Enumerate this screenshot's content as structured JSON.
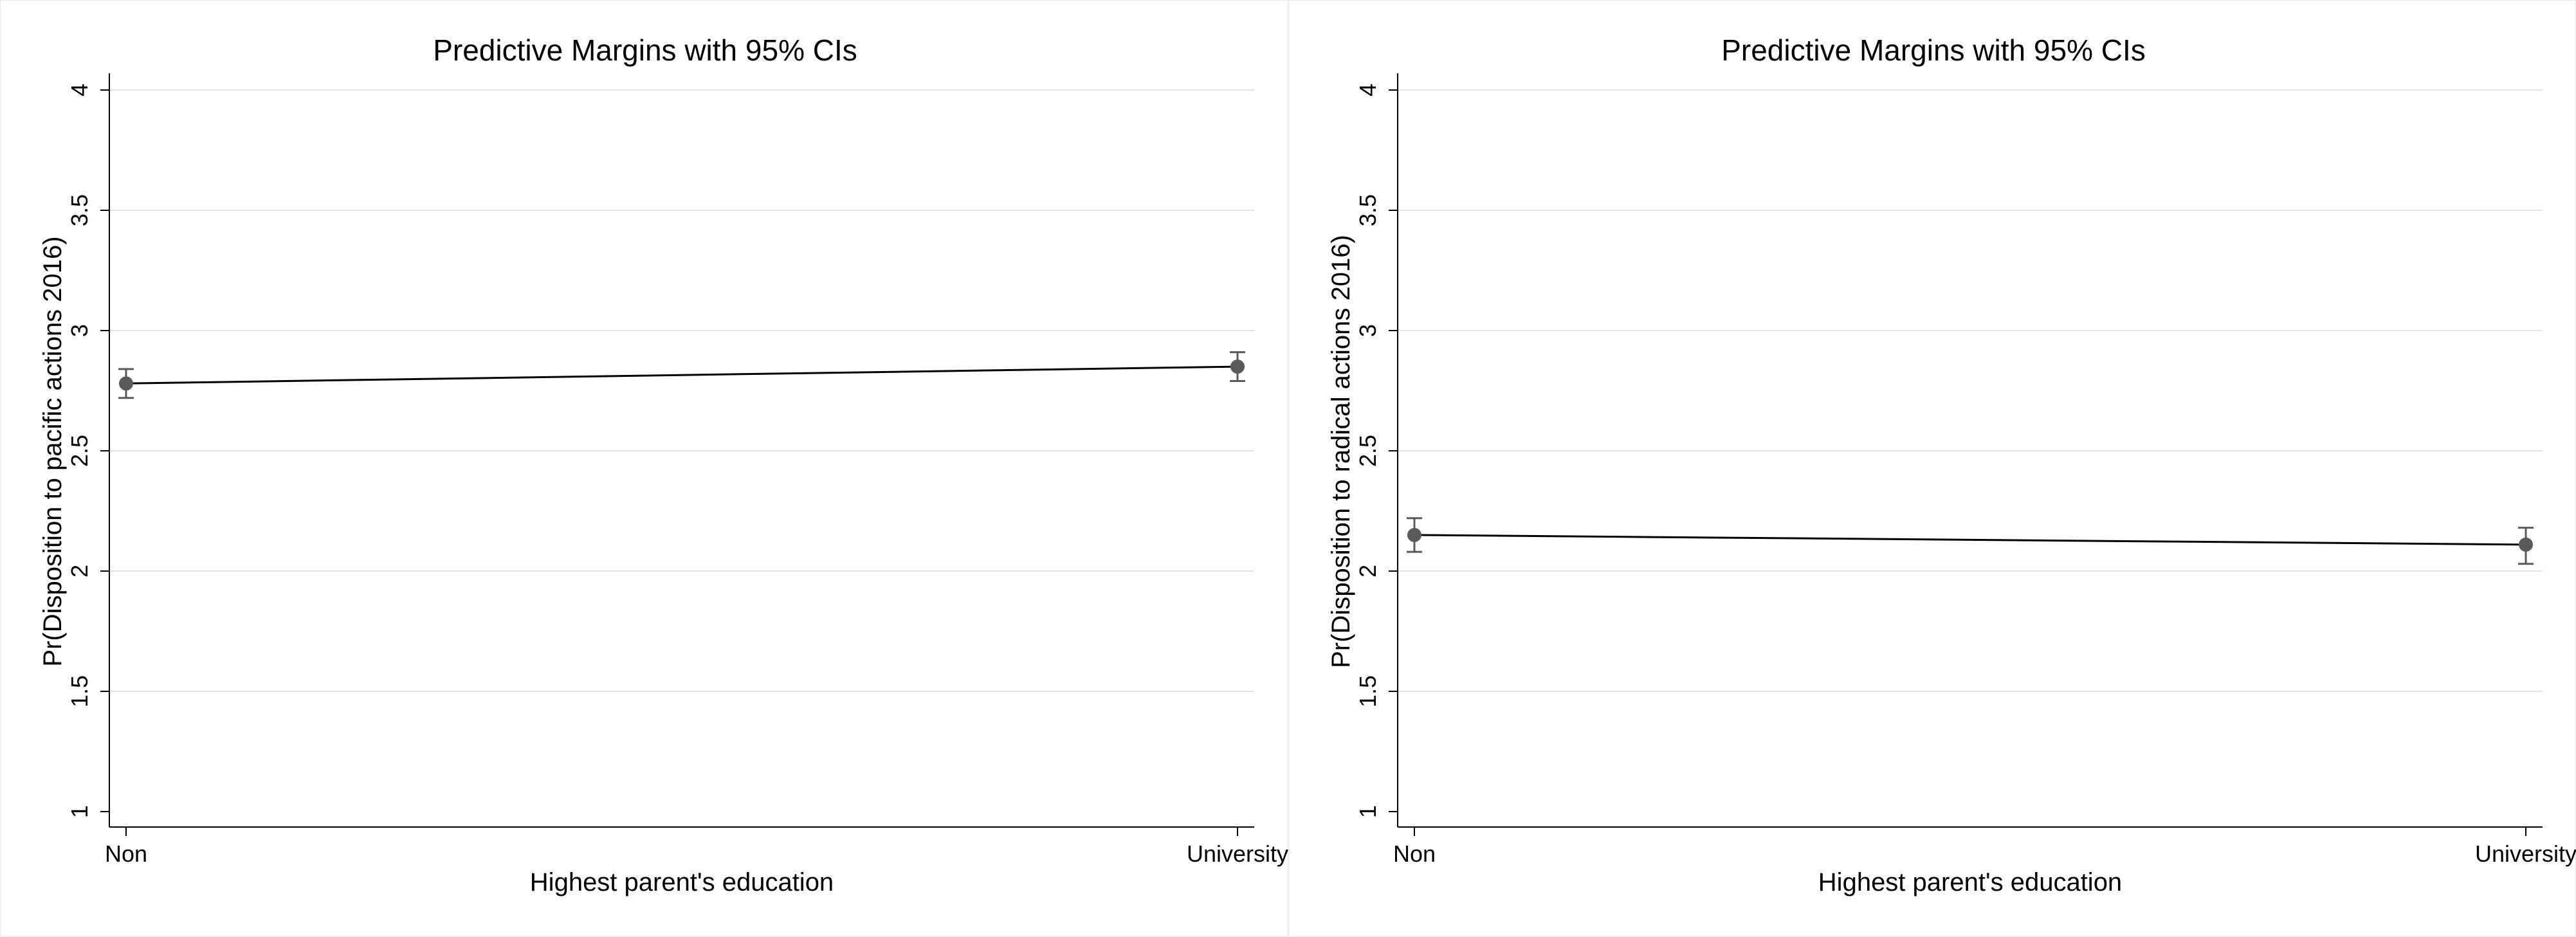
{
  "chart_data": [
    {
      "type": "line",
      "title": "Predictive Margins with 95% CIs",
      "xlabel": "Highest parent's education",
      "ylabel": "Pr(Disposition to pacific actions 2016)",
      "categories": [
        "Non",
        "University"
      ],
      "series": [
        {
          "values": [
            2.78,
            2.85
          ],
          "ci_low": [
            2.72,
            2.79
          ],
          "ci_high": [
            2.84,
            2.91
          ]
        }
      ],
      "ylim": [
        1,
        4
      ],
      "yticks": [
        "1",
        "1.5",
        "2",
        "2.5",
        "3",
        "3.5",
        "4"
      ],
      "grid": true,
      "legend": "none"
    },
    {
      "type": "line",
      "title": "Predictive Margins with 95% CIs",
      "xlabel": "Highest parent's education",
      "ylabel": "Pr(Disposition to radical actions 2016)",
      "categories": [
        "Non",
        "University"
      ],
      "series": [
        {
          "values": [
            2.15,
            2.11
          ],
          "ci_low": [
            2.08,
            2.03
          ],
          "ci_high": [
            2.22,
            2.18
          ]
        }
      ],
      "ylim": [
        1,
        4
      ],
      "yticks": [
        "1",
        "1.5",
        "2",
        "2.5",
        "3",
        "3.5",
        "4"
      ],
      "grid": true,
      "legend": "none"
    }
  ],
  "colors": {
    "background": "#ffffff",
    "gridline": "#e4e4e4",
    "axis": "#000000",
    "line": "#000000",
    "marker": "#5a5a5a",
    "ci": "#5a5a5a",
    "panel_border": "#eeeeee"
  }
}
